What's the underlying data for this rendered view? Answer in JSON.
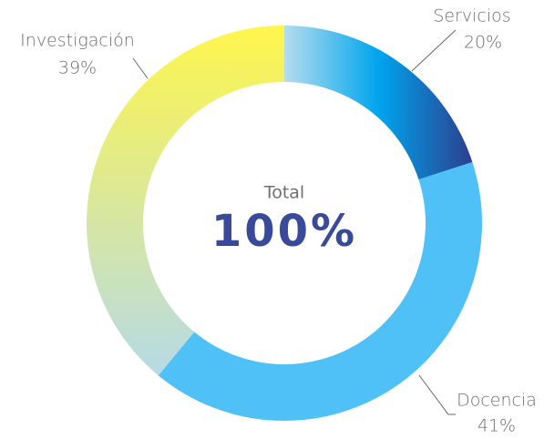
{
  "chart_data": {
    "type": "donut",
    "categories": [
      "Servicios",
      "Docencia",
      "Investigación"
    ],
    "values": [
      20,
      41,
      39
    ],
    "value_labels": [
      "20%",
      "41%",
      "39%"
    ],
    "colors": [
      [
        "#b5ddef",
        "#00a5ee",
        "#2c3f8e"
      ],
      [
        "#4fc1f7"
      ],
      [
        "#b6dae6",
        "#fff64c"
      ]
    ],
    "center_label": "Total",
    "center_value": "100%"
  }
}
